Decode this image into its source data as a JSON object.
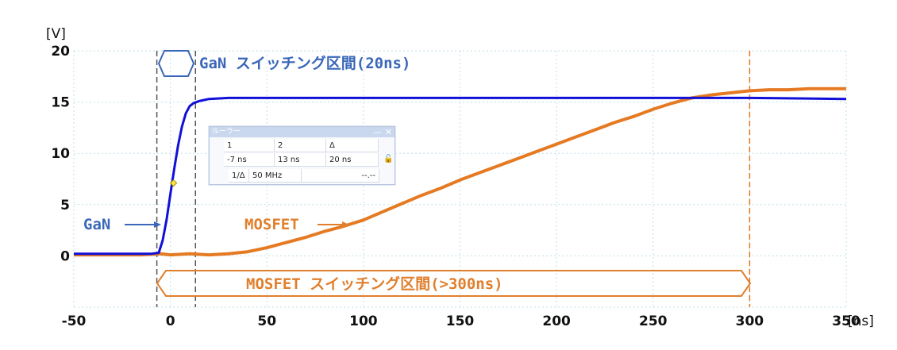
{
  "chart_data": {
    "type": "line",
    "ylabel_unit": "[V]",
    "xlabel_unit": "[ns]",
    "xlim": [
      -50,
      350
    ],
    "ylim": [
      -5,
      20
    ],
    "x_ticks": [
      -50,
      0,
      50,
      100,
      150,
      200,
      250,
      300,
      350
    ],
    "x_tick_labels": [
      "-50",
      "0",
      "50",
      "100",
      "150",
      "200",
      "250",
      "300",
      "350"
    ],
    "y_ticks": [
      0,
      5,
      10,
      15,
      20
    ],
    "y_tick_labels": [
      "0",
      "5",
      "10",
      "15",
      "20"
    ],
    "grid": true,
    "colors": {
      "gan": "#1010d8",
      "mosfet": "#e57a22",
      "gan_annotation": "#3a67b8",
      "mosfet_annotation": "#e07f2c"
    },
    "series": [
      {
        "name": "GaN",
        "x": [
          -50,
          -10,
          -6,
          -4,
          -2,
          0,
          2,
          4,
          6,
          8,
          10,
          12,
          15,
          20,
          30,
          60,
          100,
          140,
          200,
          260,
          300,
          350
        ],
        "y": [
          0.2,
          0.2,
          0.3,
          1.5,
          3.5,
          6.0,
          8.5,
          10.8,
          12.6,
          13.9,
          14.6,
          14.9,
          15.1,
          15.3,
          15.4,
          15.4,
          15.4,
          15.4,
          15.4,
          15.4,
          15.4,
          15.3
        ]
      },
      {
        "name": "MOSFET",
        "x": [
          -50,
          -15,
          -5,
          0,
          10,
          20,
          30,
          40,
          50,
          60,
          70,
          80,
          90,
          100,
          110,
          120,
          130,
          140,
          150,
          160,
          170,
          180,
          190,
          200,
          210,
          220,
          230,
          240,
          250,
          260,
          270,
          280,
          290,
          300,
          310,
          320,
          330,
          340,
          350
        ],
        "y": [
          0.1,
          0.1,
          0.2,
          0.1,
          0.2,
          0.1,
          0.2,
          0.4,
          0.8,
          1.3,
          1.8,
          2.4,
          2.9,
          3.5,
          4.3,
          5.1,
          5.9,
          6.6,
          7.4,
          8.1,
          8.8,
          9.5,
          10.2,
          10.9,
          11.6,
          12.3,
          13.0,
          13.6,
          14.3,
          14.9,
          15.4,
          15.7,
          15.9,
          16.1,
          16.2,
          16.2,
          16.3,
          16.3,
          16.3
        ]
      }
    ],
    "markers": [
      {
        "x": -7,
        "color": "#555555"
      },
      {
        "x": 13,
        "color": "#555555"
      },
      {
        "x": 300,
        "color": "#e57a22"
      }
    ],
    "cursor_point": {
      "x": 0,
      "y": 7.1
    }
  },
  "annotations": {
    "gan_window": "GaN スイッチング区間(20ns)",
    "gan_label": "GaN",
    "mosfet_label": "MOSFET",
    "mosfet_window": "MOSFET スイッチング区間(>300ns)"
  },
  "ruler": {
    "title": "ルーラー",
    "minimize": "—",
    "close": "✕",
    "header_1": "1",
    "header_2": "2",
    "header_delta": "Δ",
    "value_1": "-7 ns",
    "value_2": "13 ns",
    "value_delta": "20 ns",
    "freq_label": "1/Δ",
    "freq_value": "50 MHz",
    "extra_value": "--.--"
  }
}
